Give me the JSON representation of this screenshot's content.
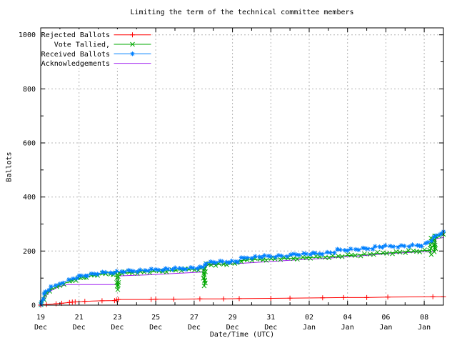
{
  "chart_data": {
    "type": "line",
    "title": "Limiting the term of the technical committee members",
    "xlabel": "Date/Time (UTC)",
    "ylabel": "Ballots",
    "x_origin": "19 Dec 00:00 UTC",
    "x_units": "days",
    "xlim": [
      0,
      21
    ],
    "ylim": [
      0,
      1000
    ],
    "grid": true,
    "grid_color": "#b4b4b4",
    "background": "#ffffff",
    "legend_position": "top-left",
    "yticks": [
      0,
      200,
      400,
      600,
      800,
      1000
    ],
    "xticks": [
      {
        "d": 0,
        "day": "19",
        "month": "Dec"
      },
      {
        "d": 2,
        "day": "21",
        "month": "Dec"
      },
      {
        "d": 4,
        "day": "23",
        "month": "Dec"
      },
      {
        "d": 6,
        "day": "25",
        "month": "Dec"
      },
      {
        "d": 8,
        "day": "27",
        "month": "Dec"
      },
      {
        "d": 10,
        "day": "29",
        "month": "Dec"
      },
      {
        "d": 12,
        "day": "31",
        "month": "Dec"
      },
      {
        "d": 14,
        "day": "02",
        "month": "Jan"
      },
      {
        "d": 16,
        "day": "04",
        "month": "Jan"
      },
      {
        "d": 18,
        "day": "06",
        "month": "Jan"
      },
      {
        "d": 20,
        "day": "08",
        "month": "Jan"
      }
    ],
    "series": [
      {
        "name": "Rejected Ballots",
        "color": "#ff0000",
        "marker": "plus",
        "marker_mode": "vertices",
        "points": [
          [
            0,
            0
          ],
          [
            0.3,
            2
          ],
          [
            0.8,
            5
          ],
          [
            1.1,
            7
          ],
          [
            1.5,
            10
          ],
          [
            1.65,
            11
          ],
          [
            1.8,
            12
          ],
          [
            2.3,
            14
          ],
          [
            3.2,
            16
          ],
          [
            3.85,
            17
          ],
          [
            3.95,
            19
          ],
          [
            4.05,
            21
          ],
          [
            5.76,
            21
          ],
          [
            6.0,
            22
          ],
          [
            6.94,
            22
          ],
          [
            8.3,
            23
          ],
          [
            9.54,
            23
          ],
          [
            10.35,
            24
          ],
          [
            12,
            25
          ],
          [
            13,
            26
          ],
          [
            14.7,
            27
          ],
          [
            15.8,
            28
          ],
          [
            17,
            28
          ],
          [
            18.1,
            30
          ],
          [
            20.45,
            31
          ],
          [
            21,
            31
          ]
        ]
      },
      {
        "name": "Vote Tallied,",
        "color": "#00a800",
        "marker": "cross",
        "marker_mode": "dense",
        "marker_step": 5.5,
        "points": [
          [
            0,
            0
          ],
          [
            0.07,
            10
          ],
          [
            0.14,
            24
          ],
          [
            0.22,
            36
          ],
          [
            0.32,
            46
          ],
          [
            0.45,
            54
          ],
          [
            0.6,
            60
          ],
          [
            0.8,
            67
          ],
          [
            1.0,
            74
          ],
          [
            1.25,
            81
          ],
          [
            1.5,
            87
          ],
          [
            1.8,
            94
          ],
          [
            2.1,
            100
          ],
          [
            2.4,
            106
          ],
          [
            2.8,
            111
          ],
          [
            3.2,
            114
          ],
          [
            3.6,
            116
          ],
          [
            3.95,
            117
          ],
          [
            4.02,
            56
          ],
          [
            4.06,
            119
          ],
          [
            4.6,
            120
          ],
          [
            5.2,
            122
          ],
          [
            5.9,
            124
          ],
          [
            6.6,
            127
          ],
          [
            7.3,
            130
          ],
          [
            8.0,
            132
          ],
          [
            8.5,
            134
          ],
          [
            8.54,
            70
          ],
          [
            8.58,
            150
          ],
          [
            9.1,
            151
          ],
          [
            9.7,
            152
          ],
          [
            10.1,
            153
          ],
          [
            10.42,
            165
          ],
          [
            11,
            168
          ],
          [
            12,
            170
          ],
          [
            12.7,
            172
          ],
          [
            13.4,
            174
          ],
          [
            14.1,
            176
          ],
          [
            14.8,
            178
          ],
          [
            15.5,
            181
          ],
          [
            16.2,
            184
          ],
          [
            16.9,
            187
          ],
          [
            17.6,
            191
          ],
          [
            18.3,
            194
          ],
          [
            19.0,
            197
          ],
          [
            19.6,
            200
          ],
          [
            20.0,
            202
          ],
          [
            20.3,
            203
          ],
          [
            20.33,
            190
          ],
          [
            20.37,
            252
          ],
          [
            20.5,
            253
          ],
          [
            20.54,
            196
          ],
          [
            20.58,
            255
          ],
          [
            20.8,
            258
          ],
          [
            21,
            262
          ]
        ]
      },
      {
        "name": "Received Ballots",
        "color": "#0080ff",
        "marker": "star",
        "marker_mode": "dense",
        "marker_step": 5,
        "points": [
          [
            0,
            0
          ],
          [
            0.05,
            12
          ],
          [
            0.1,
            26
          ],
          [
            0.18,
            40
          ],
          [
            0.28,
            50
          ],
          [
            0.4,
            58
          ],
          [
            0.55,
            65
          ],
          [
            0.75,
            72
          ],
          [
            1.0,
            80
          ],
          [
            1.2,
            86
          ],
          [
            1.45,
            92
          ],
          [
            1.7,
            98
          ],
          [
            2.0,
            105
          ],
          [
            2.3,
            110
          ],
          [
            2.6,
            114
          ],
          [
            3.0,
            117
          ],
          [
            3.4,
            120
          ],
          [
            3.8,
            122
          ],
          [
            4.2,
            124
          ],
          [
            4.7,
            126
          ],
          [
            5.2,
            128
          ],
          [
            5.8,
            130
          ],
          [
            6.5,
            133
          ],
          [
            7.2,
            135
          ],
          [
            7.8,
            137
          ],
          [
            8.3,
            138
          ],
          [
            8.5,
            139
          ],
          [
            8.56,
            151
          ],
          [
            8.64,
            157
          ],
          [
            9.0,
            159
          ],
          [
            9.5,
            160
          ],
          [
            10.0,
            161
          ],
          [
            10.3,
            162
          ],
          [
            10.42,
            172
          ],
          [
            10.8,
            176
          ],
          [
            11.2,
            178
          ],
          [
            11.7,
            180
          ],
          [
            12.0,
            181
          ],
          [
            12.6,
            182
          ],
          [
            13.05,
            183
          ],
          [
            13.15,
            188
          ],
          [
            13.7,
            189
          ],
          [
            14.2,
            190
          ],
          [
            14.7,
            192
          ],
          [
            15.1,
            194
          ],
          [
            15.35,
            196
          ],
          [
            15.45,
            203
          ],
          [
            16.0,
            205
          ],
          [
            16.6,
            207
          ],
          [
            17.1,
            209
          ],
          [
            17.3,
            211
          ],
          [
            17.45,
            215
          ],
          [
            18.0,
            217
          ],
          [
            18.6,
            218
          ],
          [
            19.2,
            219
          ],
          [
            19.6,
            220
          ],
          [
            19.9,
            222
          ],
          [
            20.05,
            226
          ],
          [
            20.2,
            232
          ],
          [
            20.35,
            240
          ],
          [
            20.5,
            248
          ],
          [
            20.65,
            256
          ],
          [
            20.8,
            263
          ],
          [
            20.9,
            268
          ],
          [
            21,
            272
          ]
        ]
      },
      {
        "name": "Acknowledgements",
        "color": "#a020f0",
        "marker": "none",
        "marker_mode": "none",
        "points": [
          [
            0,
            0
          ],
          [
            0.1,
            14
          ],
          [
            0.2,
            27
          ],
          [
            0.35,
            41
          ],
          [
            0.55,
            54
          ],
          [
            0.8,
            63
          ],
          [
            1.1,
            71
          ],
          [
            1.4,
            76
          ],
          [
            4.0,
            76
          ],
          [
            4.06,
            108
          ],
          [
            4.8,
            110
          ],
          [
            5.6,
            112
          ],
          [
            6.4,
            115
          ],
          [
            7.2,
            118
          ],
          [
            8.0,
            121
          ],
          [
            8.5,
            123
          ],
          [
            8.64,
            148
          ],
          [
            9.4,
            151
          ],
          [
            10.3,
            154
          ],
          [
            11.2,
            158
          ],
          [
            12.1,
            162
          ],
          [
            13.0,
            166
          ],
          [
            14.0,
            170
          ],
          [
            15.0,
            174
          ],
          [
            16.0,
            179
          ],
          [
            17.0,
            184
          ],
          [
            18.0,
            190
          ],
          [
            19.0,
            194
          ],
          [
            19.8,
            197
          ],
          [
            20.55,
            198
          ],
          [
            20.62,
            246
          ],
          [
            20.8,
            248
          ],
          [
            21,
            250
          ]
        ]
      }
    ]
  }
}
